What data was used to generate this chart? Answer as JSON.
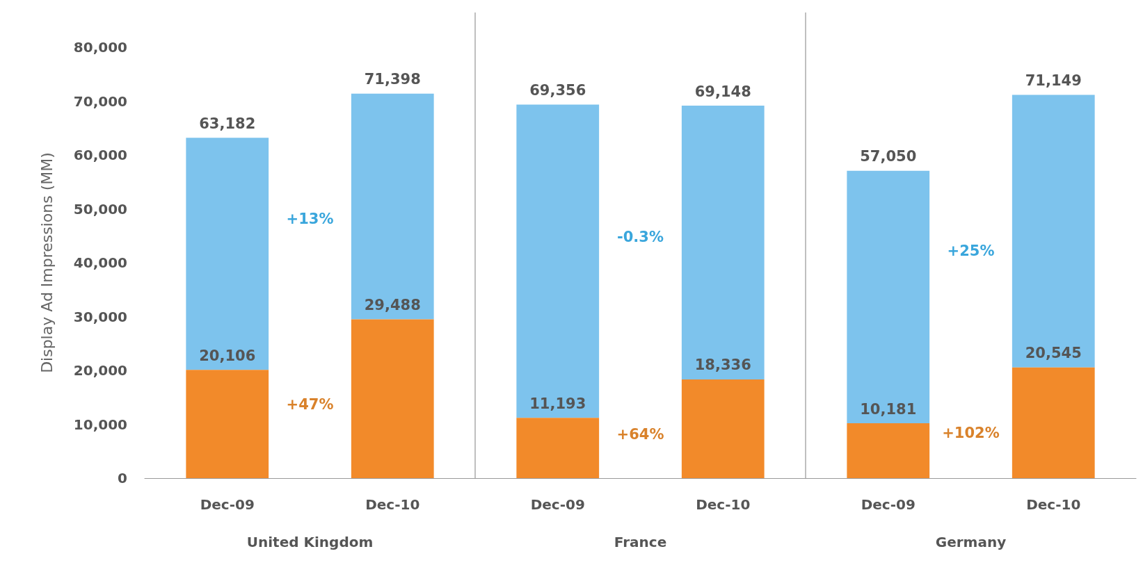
{
  "chart_data": {
    "type": "bar",
    "ylabel": "Display Ad Impressions (MM)",
    "categories": [
      "Dec-09",
      "Dec-10",
      "Dec-09",
      "Dec-10",
      "Dec-09",
      "Dec-10"
    ],
    "stacked": true,
    "series": [
      {
        "color": "#f28a2a",
        "values": [
          20106,
          29488,
          11193,
          18336,
          10181,
          20545
        ],
        "value_labels": [
          "20,106",
          "29,488",
          "11,193",
          "18,336",
          "10,181",
          "20,545"
        ]
      },
      {
        "color": "#7dc3ed",
        "values": [
          43076,
          41910,
          58163,
          50812,
          46869,
          50604
        ]
      }
    ],
    "totals": [
      "63,182",
      "71,398",
      "69,356",
      "69,148",
      "57,050",
      "71,149"
    ],
    "ylim": [
      0,
      80000
    ],
    "yticks": [
      {
        "value": 0,
        "label": "0"
      },
      {
        "value": 10000,
        "label": "10,000"
      },
      {
        "value": 20000,
        "label": "20,000"
      },
      {
        "value": 30000,
        "label": "30,000"
      },
      {
        "value": 40000,
        "label": "40,000"
      },
      {
        "value": 50000,
        "label": "50,000"
      },
      {
        "value": 60000,
        "label": "60,000"
      },
      {
        "value": 70000,
        "label": "70,000"
      },
      {
        "value": 80000,
        "label": "80,000"
      }
    ],
    "grid": false,
    "annotations": [
      "+13%",
      "+47%",
      "-0.3%",
      "+64%",
      "+25%",
      "+102%",
      "United Kingdom",
      "France",
      "Germany"
    ]
  }
}
